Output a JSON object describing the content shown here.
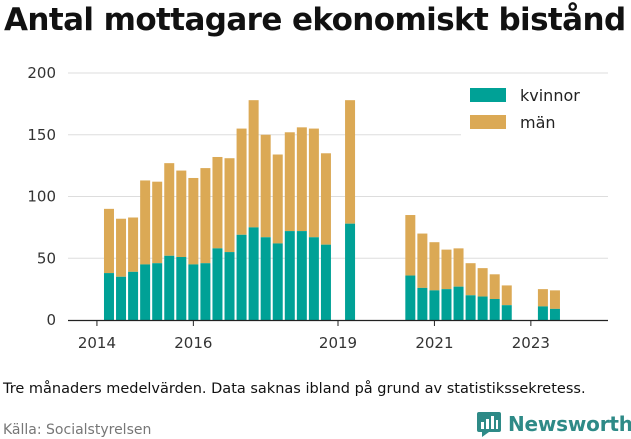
{
  "title": "Antal mottagare ekonomiskt bistånd",
  "caption": "Tre månaders medelvärden. Data saknas ibland på grund av statistikssekretess.",
  "source": "Källa: Socialstyrelsen",
  "brand": {
    "name": "Newsworthy",
    "icon": "newsworthy-logo-icon"
  },
  "colors": {
    "kvinnor": "#00a196",
    "man": "#dba955",
    "grid": "#dddddd",
    "axis": "#222222"
  },
  "chart_data": {
    "type": "bar",
    "stacked": true,
    "title": "Antal mottagare ekonomiskt bistånd",
    "xlabel": "",
    "ylabel": "",
    "ylim": [
      0,
      200
    ],
    "yticks": [
      0,
      50,
      100,
      150,
      200
    ],
    "xlim": [
      2013.4,
      2024.6
    ],
    "xticks": [
      {
        "value": 2014,
        "label": "2014"
      },
      {
        "value": 2016,
        "label": "2016"
      },
      {
        "value": 2019,
        "label": "2019"
      },
      {
        "value": 2021,
        "label": "2021"
      },
      {
        "value": 2023,
        "label": "2023"
      }
    ],
    "legend": {
      "position": "top-right",
      "entries": [
        "kvinnor",
        "män"
      ]
    },
    "grid": true,
    "x": [
      2014.25,
      2014.5,
      2014.75,
      2015.0,
      2015.25,
      2015.5,
      2015.75,
      2016.0,
      2016.25,
      2016.5,
      2016.75,
      2017.0,
      2017.25,
      2017.5,
      2017.75,
      2018.0,
      2018.25,
      2018.5,
      2018.75,
      2019.25,
      2020.5,
      2020.75,
      2021.0,
      2021.25,
      2021.5,
      2021.75,
      2022.0,
      2022.25,
      2022.5,
      2023.25,
      2023.5
    ],
    "series": [
      {
        "name": "kvinnor",
        "values": [
          38,
          35,
          39,
          45,
          46,
          52,
          51,
          45,
          46,
          58,
          55,
          69,
          75,
          67,
          62,
          72,
          72,
          67,
          61,
          78,
          36,
          26,
          24,
          25,
          27,
          20,
          19,
          17,
          12,
          11,
          9
        ]
      },
      {
        "name": "män",
        "values": [
          52,
          47,
          44,
          68,
          66,
          75,
          70,
          70,
          77,
          74,
          76,
          86,
          103,
          83,
          72,
          80,
          84,
          88,
          74,
          100,
          49,
          44,
          39,
          32,
          31,
          26,
          23,
          20,
          16,
          14,
          15
        ]
      }
    ]
  }
}
